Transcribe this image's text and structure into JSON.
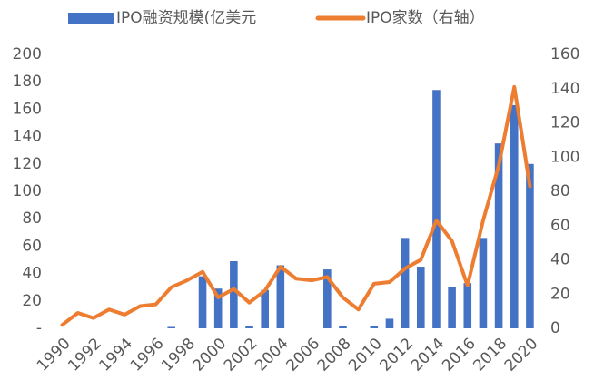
{
  "chart_data": {
    "type": "bar+line",
    "categories": [
      "1990",
      null,
      "1992",
      null,
      "1994",
      null,
      "1996",
      null,
      "1998",
      null,
      "2000",
      null,
      "2002",
      null,
      "2004",
      null,
      "2006",
      null,
      "2008",
      null,
      "2010",
      null,
      "2012",
      null,
      "2014",
      null,
      "2016",
      null,
      "2018",
      null,
      "2020"
    ],
    "series": [
      {
        "name": "IPO融资规模(亿美元",
        "type": "bar",
        "color": "#4472c4",
        "values": [
          0,
          0,
          0,
          0,
          0,
          0,
          0,
          1,
          0,
          38,
          29,
          49,
          2,
          28,
          46,
          0,
          0,
          43,
          2,
          0,
          2,
          7,
          66,
          45,
          174,
          30,
          33,
          66,
          135,
          163,
          120
        ]
      },
      {
        "name": "IPO家数（右轴）",
        "type": "line",
        "color": "#ed7d31",
        "axis": "y2",
        "values": [
          2,
          9,
          6,
          11,
          8,
          13,
          14,
          24,
          28,
          33,
          18,
          23,
          15,
          22,
          36,
          29,
          28,
          30,
          18,
          11,
          26,
          27,
          35,
          40,
          63,
          51,
          25,
          63,
          95,
          141,
          83
        ]
      }
    ],
    "ylim": [
      0,
      200
    ],
    "yticks": [
      {
        "value": 0,
        "label": "-"
      },
      20,
      40,
      60,
      80,
      100,
      120,
      140,
      160,
      180,
      200
    ],
    "y2lim": [
      0,
      160
    ],
    "y2ticks": [
      0,
      20,
      40,
      60,
      80,
      100,
      120,
      140,
      160
    ],
    "legend": "top"
  }
}
